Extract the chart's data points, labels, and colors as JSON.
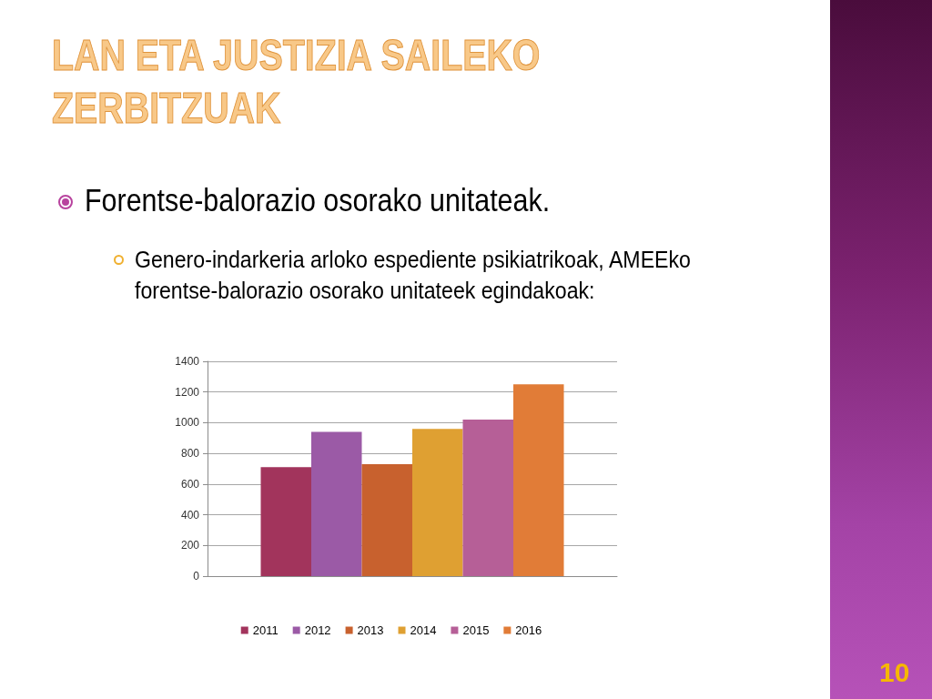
{
  "chart_data": {
    "type": "bar",
    "title": "LAN ETA JUSTIZIA SAILEKO ZERBITZUAK",
    "subtitle": "Forentse-balorazio osorako unitateak.",
    "annotations": [
      "Genero-indarkeria arloko espediente psikiatrikoak, AMEEko forentse-balorazio osorako unitateek egindakoak:",
      "10"
    ],
    "categories": [
      null
    ],
    "series": [
      {
        "name": "2011",
        "color": "#a2345c",
        "values": [
          710
        ]
      },
      {
        "name": "2012",
        "color": "#9b5aa6",
        "values": [
          940
        ]
      },
      {
        "name": "2013",
        "color": "#c8612e",
        "values": [
          730
        ]
      },
      {
        "name": "2014",
        "color": "#dfa032",
        "values": [
          960
        ]
      },
      {
        "name": "2015",
        "color": "#b65f97",
        "values": [
          1020
        ]
      },
      {
        "name": "2016",
        "color": "#e17c37",
        "values": [
          1250
        ]
      }
    ],
    "ylim": [
      0,
      1400
    ],
    "yticks": [
      0,
      200,
      400,
      600,
      800,
      1000,
      1200,
      1400
    ],
    "grid": "y",
    "legend": "bottom"
  }
}
